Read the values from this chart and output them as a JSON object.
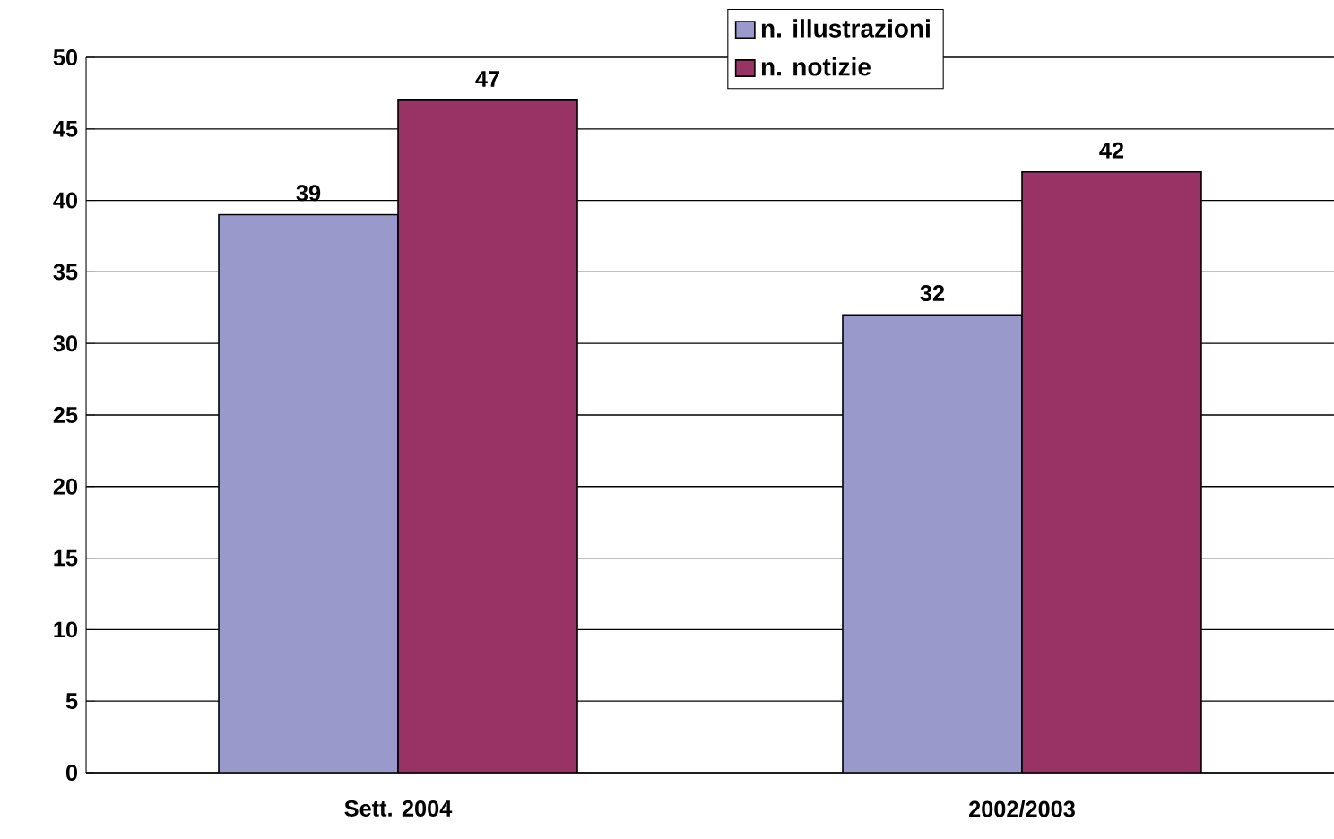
{
  "chart_data": {
    "type": "bar",
    "categories": [
      "Sett. 2004",
      "2002/2003"
    ],
    "series": [
      {
        "name": "n. illustrazioni",
        "color": "#9999cc",
        "values": [
          39,
          32
        ]
      },
      {
        "name": "n. notizie",
        "color": "#993366",
        "values": [
          47,
          42
        ]
      }
    ],
    "ylim": [
      0,
      50
    ],
    "yticks": [
      0,
      5,
      10,
      15,
      20,
      25,
      30,
      35,
      40,
      45,
      50
    ],
    "grid": "y",
    "legend": "top",
    "data_labels": true
  }
}
